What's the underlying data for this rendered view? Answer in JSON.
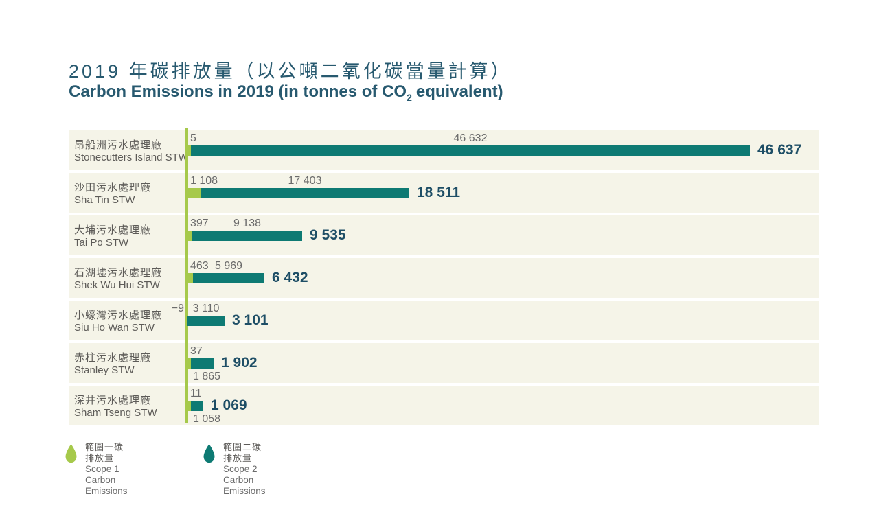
{
  "title": {
    "zh": "2019 年碳排放量（以公噸二氧化碳當量計算）",
    "en_prefix": "Carbon Emissions in 2019 (in tonnes of CO",
    "en_sub": "2",
    "en_suffix": "equivalent)"
  },
  "colors": {
    "scope1_green": "#a6c94b",
    "scope2_teal": "#0e7a73",
    "band_background": "#f5f4e8",
    "title_blue": "#27596f",
    "total_navy": "#1e4e66",
    "value_gray": "#6a6a6a",
    "label_gray": "#5d5b58"
  },
  "legend": {
    "items": [
      {
        "icon": "drop-icon",
        "zh": "範圍一碳排放量",
        "en": "Scope 1 Carbon Emissions",
        "color": "#a6c94b"
      },
      {
        "icon": "drop-icon",
        "zh": "範圍二碳排放量",
        "en": "Scope 2 Carbon Emissions",
        "color": "#0e7a73"
      }
    ]
  },
  "chart_data": {
    "type": "bar",
    "orientation": "horizontal",
    "stacked": true,
    "title": "Carbon Emissions in 2019 (in tonnes of CO2 equivalent)",
    "title_zh": "2019 年碳排放量（以公噸二氧化碳當量計算）",
    "unit": "tonnes of CO2 equivalent",
    "xlim": [
      0,
      46637
    ],
    "grid": false,
    "legend_position": "bottom",
    "categories": [
      "Stonecutters Island STW",
      "Sha Tin STW",
      "Tai Po STW",
      "Shek Wu Hui STW",
      "Siu Ho Wan STW",
      "Stanley STW",
      "Sham Tseng STW"
    ],
    "series": [
      {
        "name": "Scope 1 Carbon Emissions",
        "name_zh": "範圍一碳排放量",
        "values": [
          5,
          1108,
          397,
          463,
          -9,
          37,
          11
        ]
      },
      {
        "name": "Scope 2 Carbon Emissions",
        "name_zh": "範圍二碳排放量",
        "values": [
          46632,
          17403,
          9138,
          5969,
          3110,
          1865,
          1058
        ]
      }
    ],
    "totals": [
      46637,
      18511,
      9535,
      6432,
      3101,
      1902,
      1069
    ],
    "rows": [
      {
        "label_zh": "昂船洲污水處理廠",
        "label_en": "Stonecutters Island STW",
        "scope1": 5,
        "scope2": 46632,
        "total": 46637,
        "scope1_label": "5",
        "scope2_label": "46 632",
        "total_label": "46 637",
        "scope2_label_position": "above"
      },
      {
        "label_zh": "沙田污水處理廠",
        "label_en": "Sha Tin STW",
        "scope1": 1108,
        "scope2": 17403,
        "total": 18511,
        "scope1_label": "1 108",
        "scope2_label": "17 403",
        "total_label": "18 511",
        "scope2_label_position": "above"
      },
      {
        "label_zh": "大埔污水處理廠",
        "label_en": "Tai Po STW",
        "scope1": 397,
        "scope2": 9138,
        "total": 9535,
        "scope1_label": "397",
        "scope2_label": "9 138",
        "total_label": "9 535",
        "scope2_label_position": "above"
      },
      {
        "label_zh": "石湖墟污水處理廠",
        "label_en": "Shek Wu Hui STW",
        "scope1": 463,
        "scope2": 5969,
        "total": 6432,
        "scope1_label": "463",
        "scope2_label": "5 969",
        "total_label": "6 432",
        "scope2_label_position": "above"
      },
      {
        "label_zh": "小蠔灣污水處理廠",
        "label_en": "Siu Ho Wan STW",
        "scope1": -9,
        "scope2": 3110,
        "total": 3101,
        "scope1_label": "−9",
        "scope2_label": "3 110",
        "total_label": "3 101",
        "scope2_label_position": "above"
      },
      {
        "label_zh": "赤柱污水處理廠",
        "label_en": "Stanley STW",
        "scope1": 37,
        "scope2": 1865,
        "total": 1902,
        "scope1_label": "37",
        "scope2_label": "1 865",
        "total_label": "1 902",
        "scope2_label_position": "below"
      },
      {
        "label_zh": "深井污水處理廠",
        "label_en": "Sham Tseng STW",
        "scope1": 11,
        "scope2": 1058,
        "total": 1069,
        "scope1_label": "11",
        "scope2_label": "1 058",
        "total_label": "1 069",
        "scope2_label_position": "below"
      }
    ]
  }
}
